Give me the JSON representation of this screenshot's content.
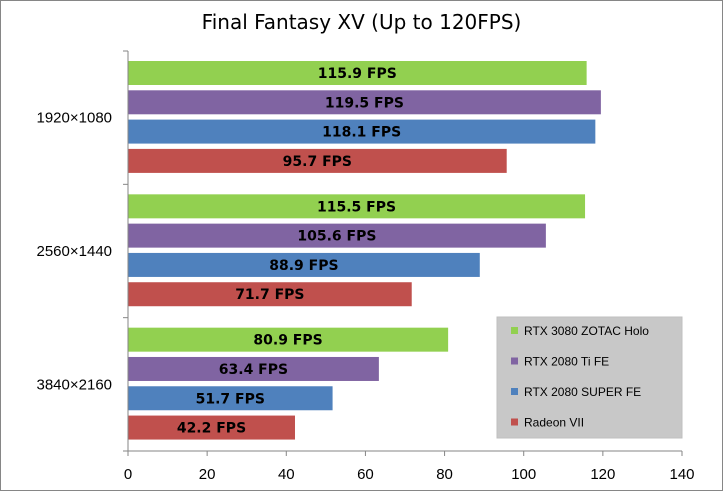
{
  "chart_data": {
    "type": "bar",
    "orientation": "horizontal",
    "title": "Final Fantasy XV (Up to 120FPS)",
    "categories": [
      "1920×1080",
      "2560×1440",
      "3840×2160"
    ],
    "series": [
      {
        "name": "RTX 3080 ZOTAC Holo",
        "color": "#92d050",
        "values": [
          115.9,
          115.5,
          80.9
        ],
        "labels": [
          "115.9 FPS",
          "115.5 FPS",
          "80.9 FPS"
        ]
      },
      {
        "name": "RTX 2080 Ti FE",
        "color": "#8064a2",
        "values": [
          119.5,
          105.6,
          63.4
        ],
        "labels": [
          "119.5 FPS",
          "105.6 FPS",
          "63.4 FPS"
        ]
      },
      {
        "name": "RTX 2080 SUPER FE",
        "color": "#4f81bd",
        "values": [
          118.1,
          88.9,
          51.7
        ],
        "labels": [
          "118.1 FPS",
          "88.9 FPS",
          "51.7 FPS"
        ]
      },
      {
        "name": "Radeon VII",
        "color": "#c0504d",
        "values": [
          95.7,
          71.7,
          42.2
        ],
        "labels": [
          "95.7 FPS",
          "71.7 FPS",
          "42.2 FPS"
        ]
      }
    ],
    "xlim": [
      0,
      140
    ],
    "xticks": [
      "0",
      "20",
      "40",
      "60",
      "80",
      "100",
      "120",
      "140"
    ],
    "grid": false,
    "legend_position": "bottom-right",
    "legend_background": "#c8c8c8"
  }
}
